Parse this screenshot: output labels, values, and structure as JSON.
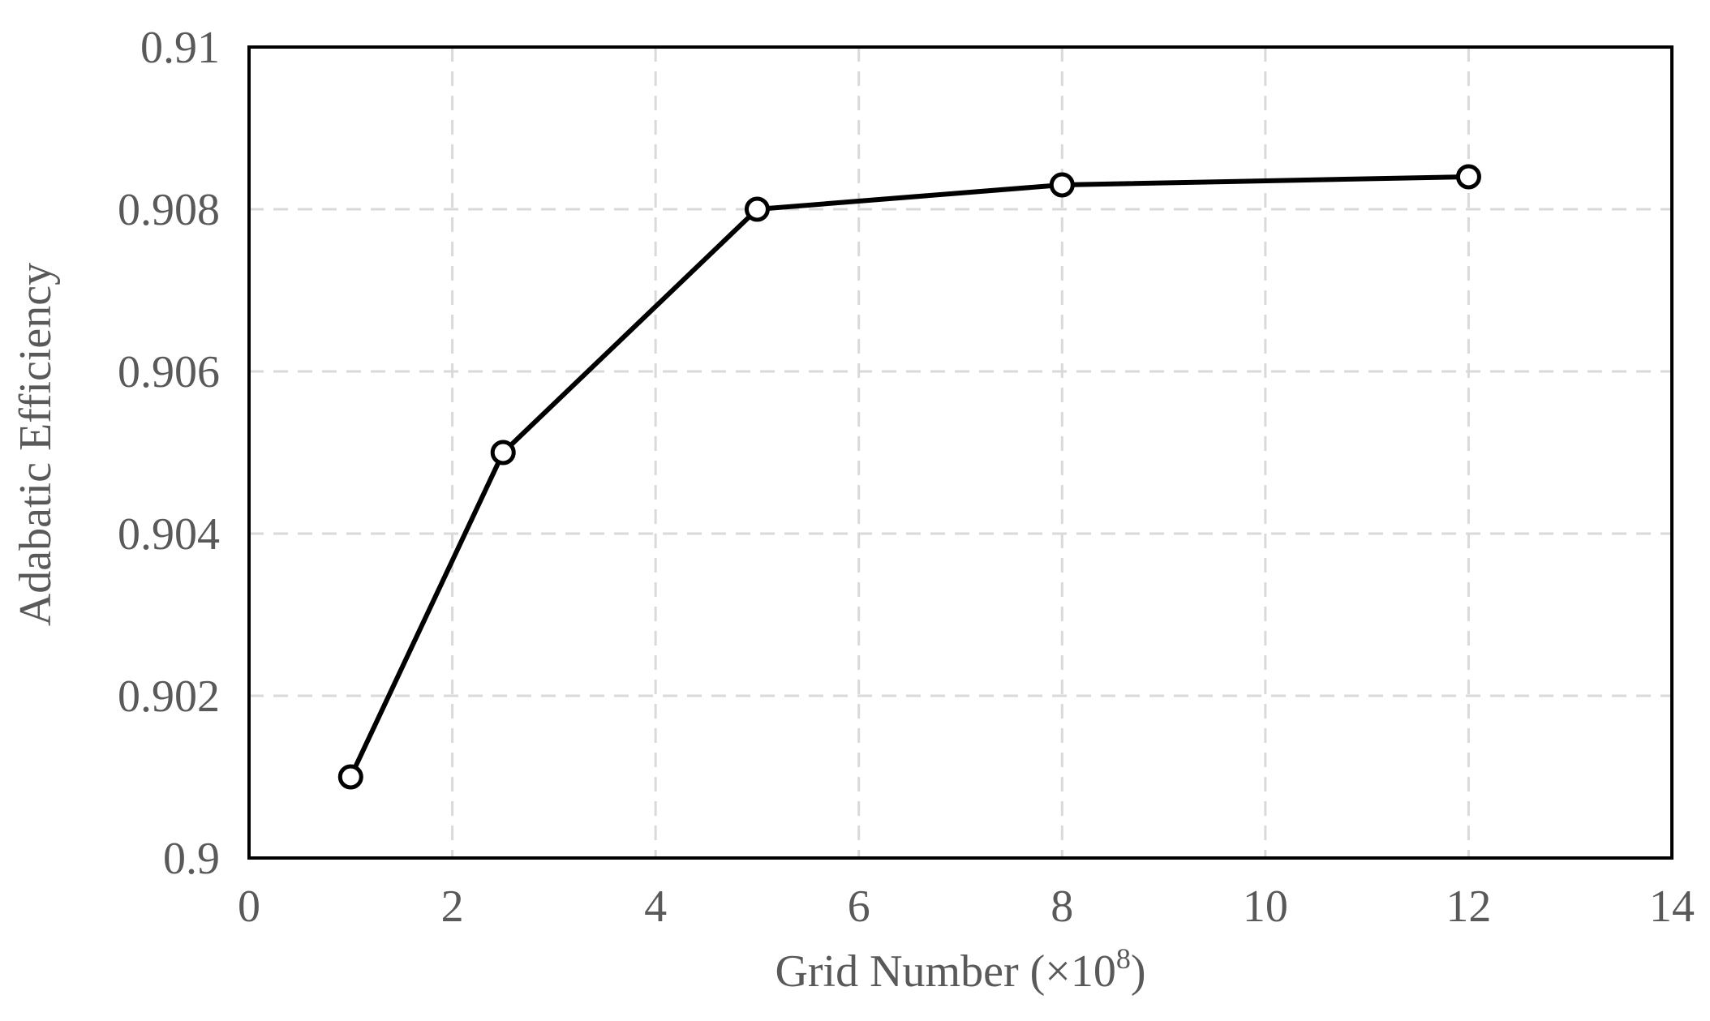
{
  "chart_data": {
    "type": "line",
    "xlabel": "Grid Number (×10",
    "xlabel_superscript": "8",
    "xlabel_close": ")",
    "ylabel": "Adabatic Efficiency",
    "xlim": [
      0,
      14
    ],
    "ylim": [
      0.9,
      0.91
    ],
    "x_ticks": [
      0,
      2,
      4,
      6,
      8,
      10,
      12,
      14
    ],
    "x_tick_labels": [
      "0",
      "2",
      "4",
      "6",
      "8",
      "10",
      "12",
      "14"
    ],
    "y_ticks": [
      0.9,
      0.902,
      0.904,
      0.906,
      0.908,
      0.91
    ],
    "y_tick_labels": [
      "0.9",
      "0.902",
      "0.904",
      "0.906",
      "0.908",
      "0.91"
    ],
    "grid": true,
    "legend": "none",
    "series": [
      {
        "x": [
          1,
          2.5,
          5,
          8,
          12
        ],
        "values": [
          0.901,
          0.905,
          0.908,
          0.9083,
          0.9084
        ],
        "color": "#000000",
        "marker": "open-circle"
      }
    ]
  }
}
